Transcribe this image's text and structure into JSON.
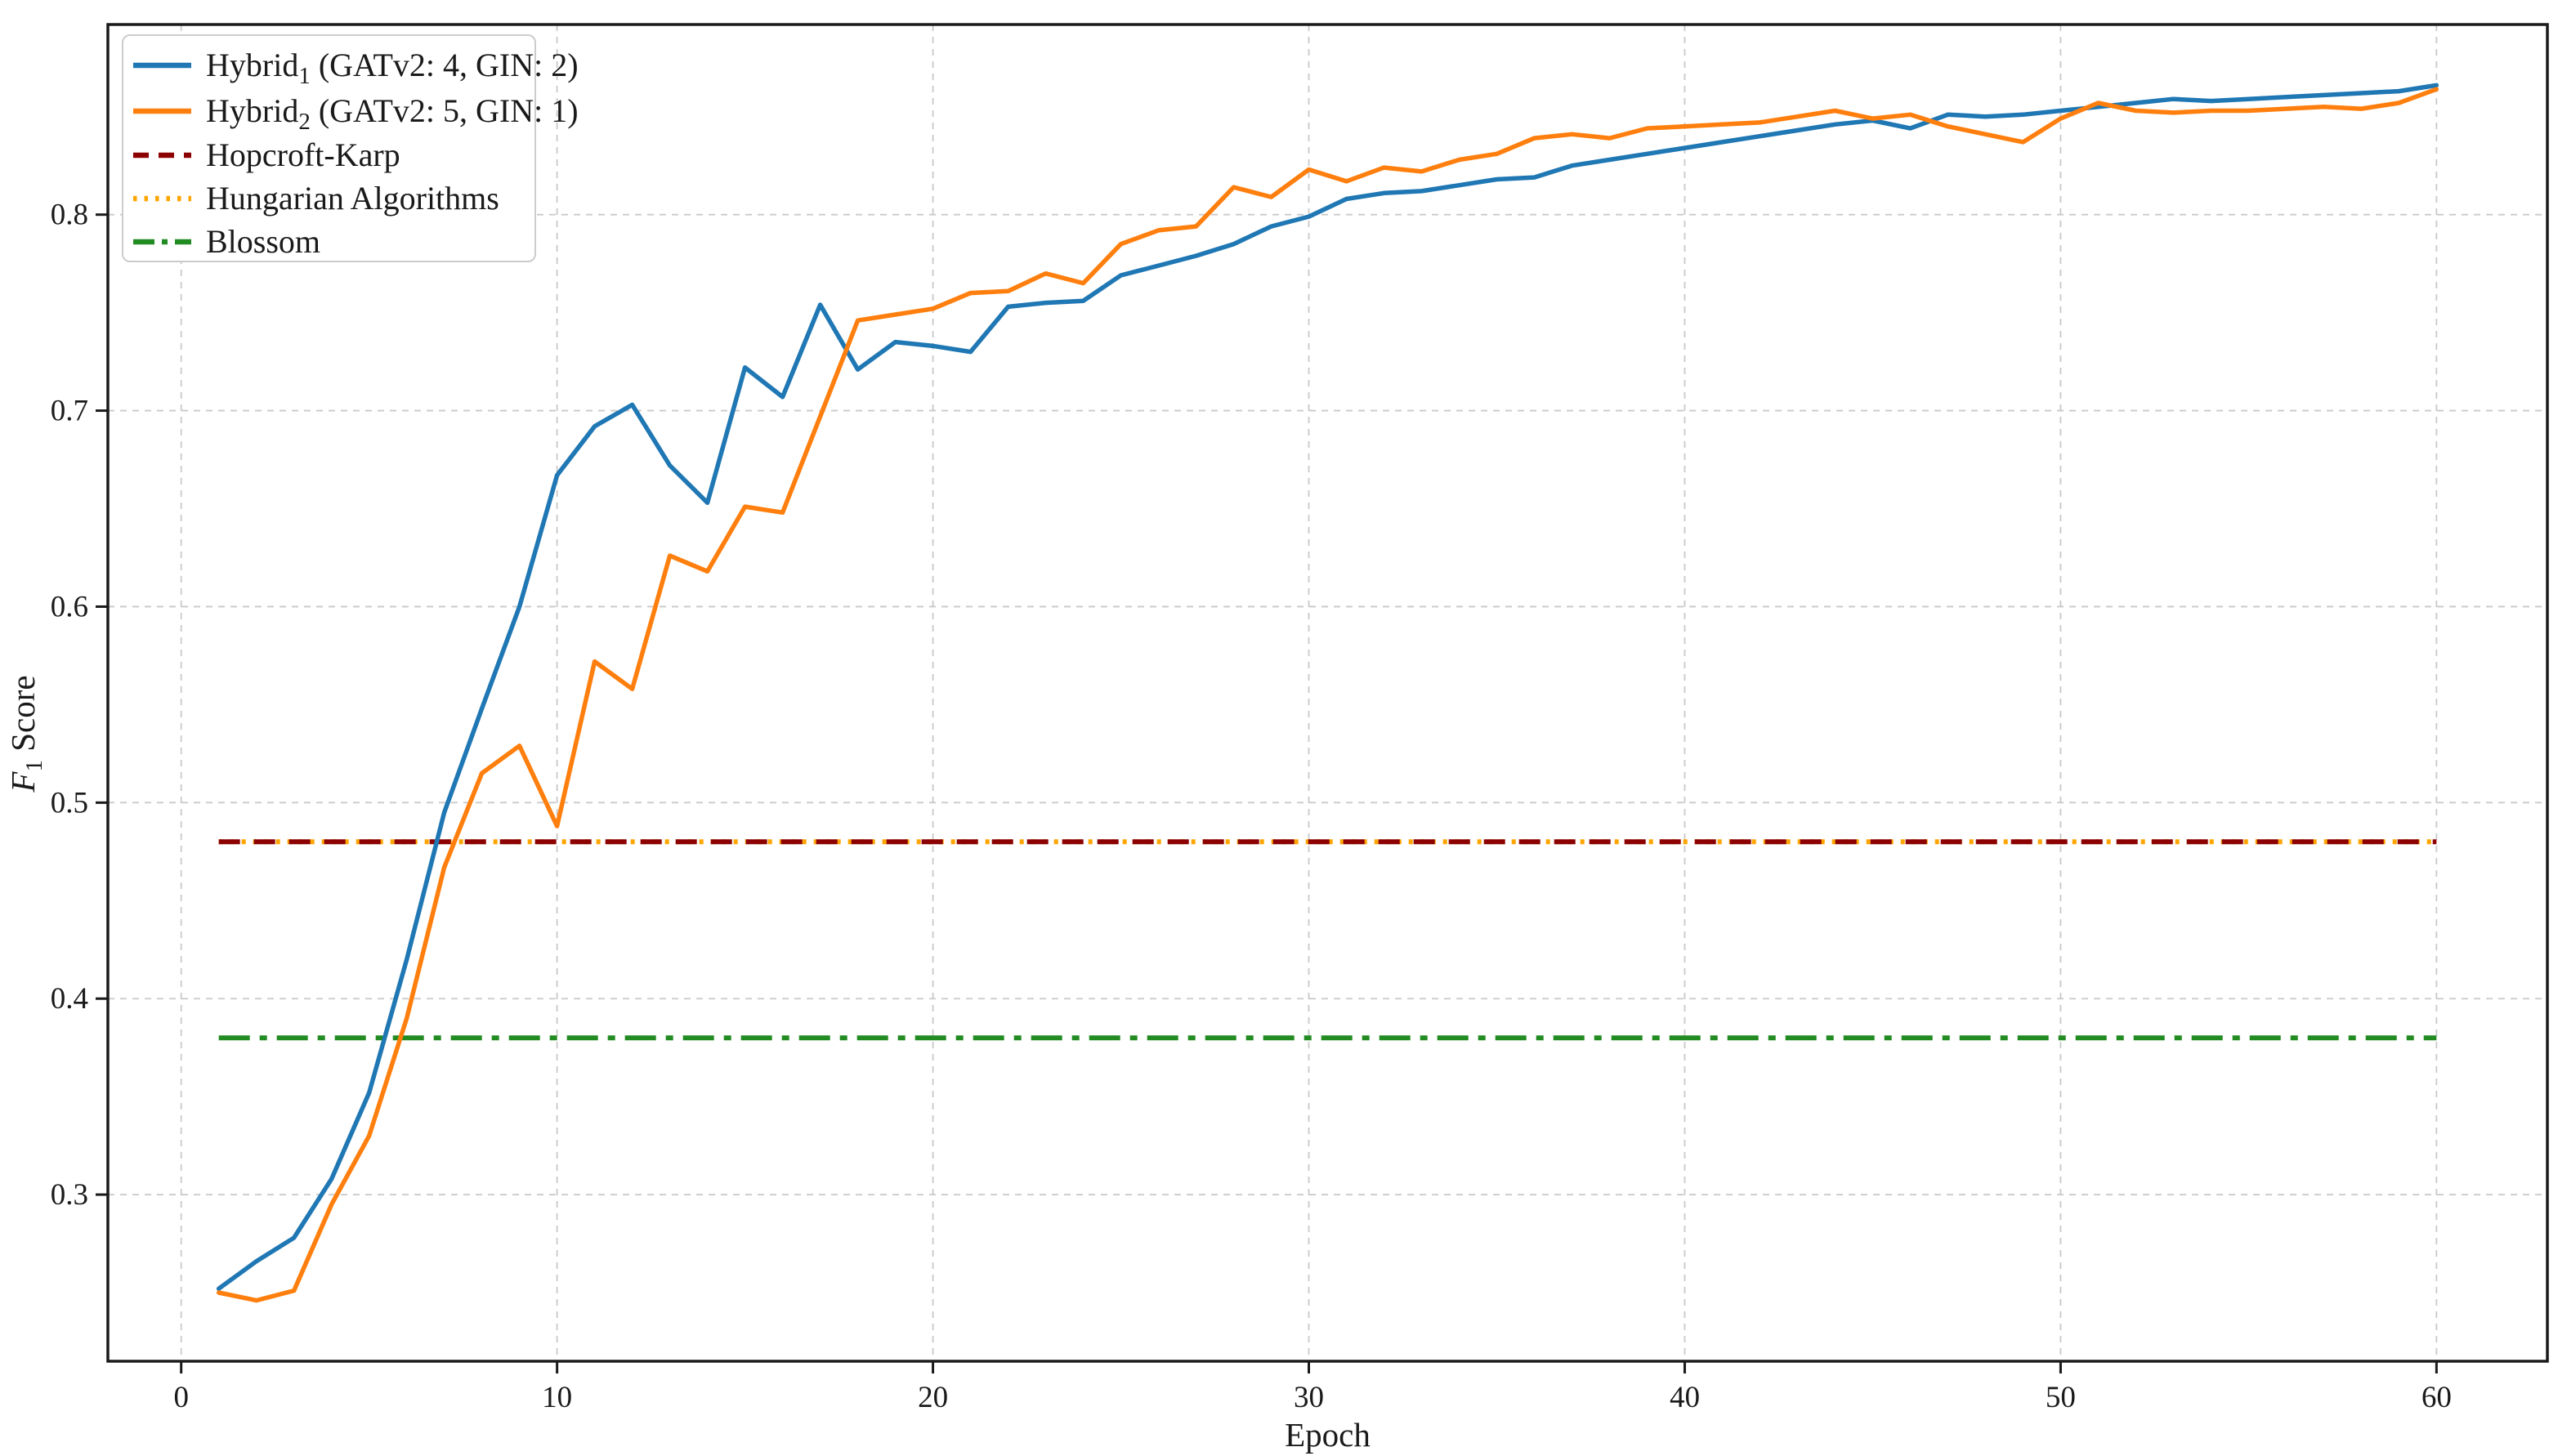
{
  "figure": {
    "background": "#ffffff",
    "text_color": "#1a1a1a",
    "grid_color": "#c9c9c9",
    "spine_color": "#1a1a1a",
    "legend_border_color": "#cccccc"
  },
  "chart_data": {
    "type": "line",
    "title": "",
    "xlabel": "Epoch",
    "ylabel": "F1 Score",
    "ylabel_parts": {
      "italic": "F",
      "sub": "1",
      "rest": " Score"
    },
    "xlim": [
      -1.95,
      62.95
    ],
    "ylim": [
      0.215,
      0.897
    ],
    "xticks": [
      0,
      10,
      20,
      30,
      40,
      50,
      60
    ],
    "yticks": [
      0.3,
      0.4,
      0.5,
      0.6,
      0.7,
      0.8
    ],
    "grid": true,
    "legend_position": "upper left",
    "x": [
      1,
      2,
      3,
      4,
      5,
      6,
      7,
      8,
      9,
      10,
      11,
      12,
      13,
      14,
      15,
      16,
      17,
      18,
      19,
      20,
      21,
      22,
      23,
      24,
      25,
      26,
      27,
      28,
      29,
      30,
      31,
      32,
      33,
      34,
      35,
      36,
      37,
      38,
      39,
      40,
      41,
      42,
      43,
      44,
      45,
      46,
      47,
      48,
      49,
      50,
      51,
      52,
      53,
      54,
      55,
      56,
      57,
      58,
      59,
      60
    ],
    "series": [
      {
        "name": "Hybrid1 (GATv2: 4, GIN: 2)",
        "label_base": "Hybrid",
        "label_sub": "1",
        "label_rest": " (GATv2: 4, GIN: 2)",
        "color": "#1f77b4",
        "style": "solid",
        "values": [
          0.252,
          0.266,
          0.278,
          0.308,
          0.352,
          0.42,
          0.495,
          0.548,
          0.6,
          0.667,
          0.692,
          0.703,
          0.672,
          0.653,
          0.722,
          0.707,
          0.754,
          0.721,
          0.735,
          0.733,
          0.73,
          0.753,
          0.755,
          0.756,
          0.769,
          0.774,
          0.779,
          0.785,
          0.794,
          0.799,
          0.808,
          0.811,
          0.812,
          0.815,
          0.818,
          0.819,
          0.825,
          0.828,
          0.831,
          0.834,
          0.837,
          0.84,
          0.843,
          0.846,
          0.848,
          0.844,
          0.851,
          0.85,
          0.851,
          0.853,
          0.855,
          0.857,
          0.859,
          0.858,
          0.859,
          0.86,
          0.861,
          0.862,
          0.863,
          0.866
        ]
      },
      {
        "name": "Hybrid2 (GATv2: 5, GIN: 1)",
        "label_base": "Hybrid",
        "label_sub": "2",
        "label_rest": " (GATv2: 5, GIN: 1)",
        "color": "#ff7f0e",
        "style": "solid",
        "values": [
          0.25,
          0.246,
          0.251,
          0.295,
          0.33,
          0.39,
          0.467,
          0.515,
          0.529,
          0.488,
          0.572,
          0.558,
          0.626,
          0.618,
          0.651,
          0.648,
          0.697,
          0.746,
          0.749,
          0.752,
          0.76,
          0.761,
          0.77,
          0.765,
          0.785,
          0.792,
          0.794,
          0.814,
          0.809,
          0.823,
          0.817,
          0.824,
          0.822,
          0.828,
          0.831,
          0.839,
          0.841,
          0.839,
          0.844,
          0.845,
          0.846,
          0.847,
          0.85,
          0.853,
          0.849,
          0.851,
          0.845,
          0.841,
          0.837,
          0.849,
          0.857,
          0.853,
          0.852,
          0.853,
          0.853,
          0.854,
          0.855,
          0.854,
          0.857,
          0.864
        ]
      }
    ],
    "baselines": [
      {
        "label": "Hopcroft-Karp",
        "value": 0.48,
        "color": "#8b0000",
        "style": "dashed"
      },
      {
        "label": "Hungarian Algorithms",
        "value": 0.48,
        "color": "#ffa500",
        "style": "dotted"
      },
      {
        "label": "Blossom",
        "value": 0.38,
        "color": "#228b22",
        "style": "dashdot"
      }
    ],
    "legend_order": [
      "Hybrid1 (GATv2: 4, GIN: 2)",
      "Hybrid2 (GATv2: 5, GIN: 1)",
      "Hopcroft-Karp",
      "Hungarian Algorithms",
      "Blossom"
    ]
  }
}
